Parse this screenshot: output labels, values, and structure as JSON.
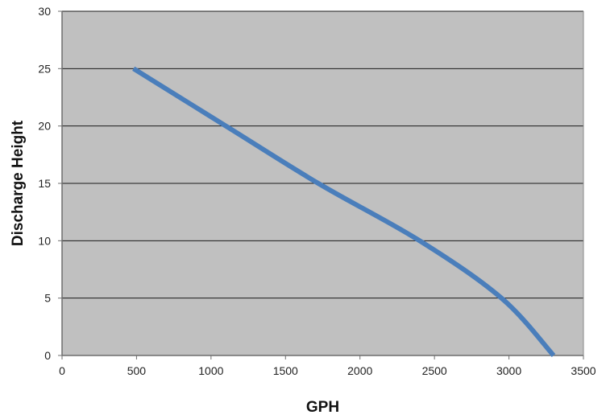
{
  "chart_data": {
    "type": "line",
    "title": "",
    "xlabel": "GPH",
    "ylabel": "Discharge Height",
    "xlim": [
      0,
      3500
    ],
    "ylim": [
      0,
      30
    ],
    "x_ticks": [
      0,
      500,
      1000,
      1500,
      2000,
      2500,
      3000,
      3500
    ],
    "y_ticks": [
      0,
      5,
      10,
      15,
      20,
      25,
      30
    ],
    "grid": "horizontal",
    "legend": "none",
    "series": [
      {
        "x": [
          480,
          1100,
          1720,
          2400,
          2950,
          3300
        ],
        "y": [
          25,
          20,
          15,
          10,
          5,
          0
        ]
      }
    ],
    "colors": {
      "plot_background": "#c0c0c0",
      "line": "#4a7ebb",
      "gridline": "#1a1a1a",
      "axis": "#6e6e6e"
    }
  }
}
